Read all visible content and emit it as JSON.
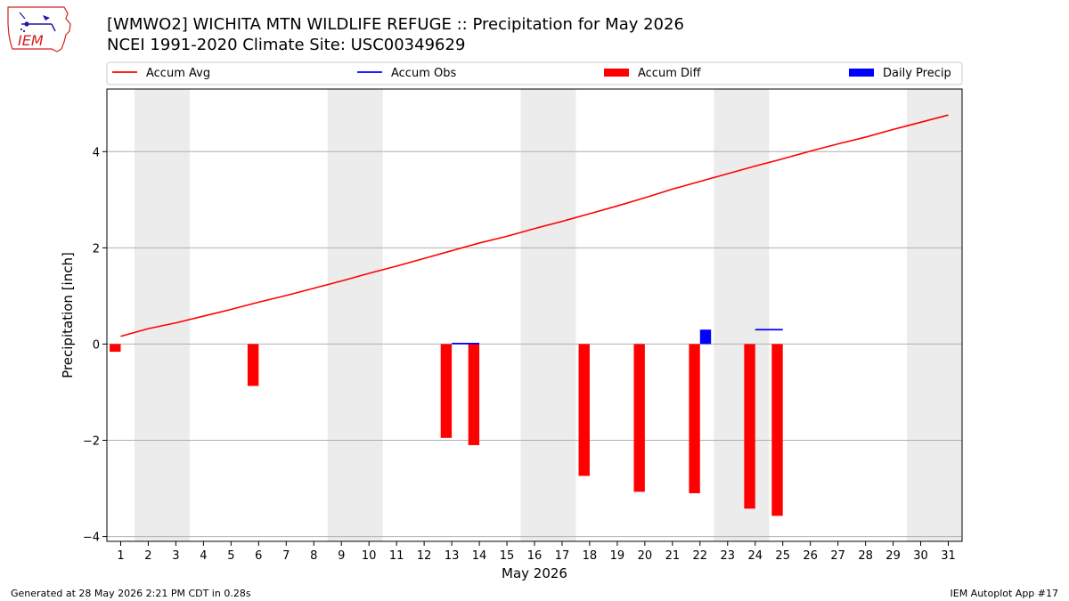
{
  "page": {
    "title_line1": "[WMWO2] WICHITA MTN WILDLIFE REFUGE :: Precipitation for May 2026",
    "title_line2": "NCEI 1991-2020 Climate Site: USC00349629",
    "logo_text": "IEM",
    "footer_left": "Generated at 28 May 2026 2:21 PM CDT in 0.28s",
    "footer_right": "IEM Autoplot App #17"
  },
  "colors": {
    "accum_avg": "#ff0000",
    "accum_obs": "#0000ff",
    "accum_diff": "#ff0000",
    "daily_precip": "#0000ff",
    "weekend_band": "#ececec",
    "grid": "#b0b0b0"
  },
  "chart_data": {
    "type": "bar",
    "xlabel": "May 2026",
    "ylabel": "Precipitation [inch]",
    "xlim": [
      0.5,
      31.5
    ],
    "ylim": [
      -4.1,
      5.3
    ],
    "yticks": [
      -4,
      -2,
      0,
      2,
      4
    ],
    "ytick_labels": [
      "−4",
      "−2",
      "0",
      "2",
      "4"
    ],
    "xticks": [
      1,
      2,
      3,
      4,
      5,
      6,
      7,
      8,
      9,
      10,
      11,
      12,
      13,
      14,
      15,
      16,
      17,
      18,
      19,
      20,
      21,
      22,
      23,
      24,
      25,
      26,
      27,
      28,
      29,
      30,
      31
    ],
    "grid": "horizontal",
    "legend_position": "top",
    "weekend_bands": [
      [
        1.5,
        3.5
      ],
      [
        8.5,
        10.5
      ],
      [
        15.5,
        17.5
      ],
      [
        22.5,
        24.5
      ],
      [
        29.5,
        31.5
      ]
    ],
    "series": [
      {
        "name": "Accum Avg",
        "kind": "line",
        "x": [
          1,
          2,
          3,
          4,
          5,
          6,
          7,
          8,
          9,
          10,
          11,
          12,
          13,
          14,
          15,
          16,
          17,
          18,
          19,
          20,
          21,
          22,
          23,
          24,
          25,
          26,
          27,
          28,
          29,
          30,
          31
        ],
        "values": [
          0.16,
          0.32,
          0.44,
          0.58,
          0.72,
          0.87,
          1.01,
          1.16,
          1.31,
          1.47,
          1.62,
          1.78,
          1.94,
          2.1,
          2.24,
          2.4,
          2.55,
          2.71,
          2.87,
          3.04,
          3.22,
          3.38,
          3.54,
          3.7,
          3.85,
          4.01,
          4.16,
          4.3,
          4.46,
          4.61,
          4.76
        ]
      },
      {
        "name": "Accum Obs",
        "kind": "step",
        "x": [
          13,
          14,
          24,
          25
        ],
        "values": [
          0.01,
          0.01,
          0.3,
          0.3
        ],
        "segments": [
          [
            13,
            14,
            0.01
          ],
          [
            24,
            25,
            0.3
          ]
        ]
      },
      {
        "name": "Accum Diff",
        "kind": "bar",
        "offset": -0.2,
        "x": [
          1,
          6,
          13,
          14,
          18,
          20,
          22,
          24,
          25
        ],
        "values": [
          -0.16,
          -0.87,
          -1.95,
          -2.1,
          -2.74,
          -3.07,
          -3.1,
          -3.42,
          -3.57
        ]
      },
      {
        "name": "Daily Precip",
        "kind": "bar",
        "offset": 0.2,
        "x": [
          22
        ],
        "values": [
          0.3
        ]
      }
    ]
  }
}
